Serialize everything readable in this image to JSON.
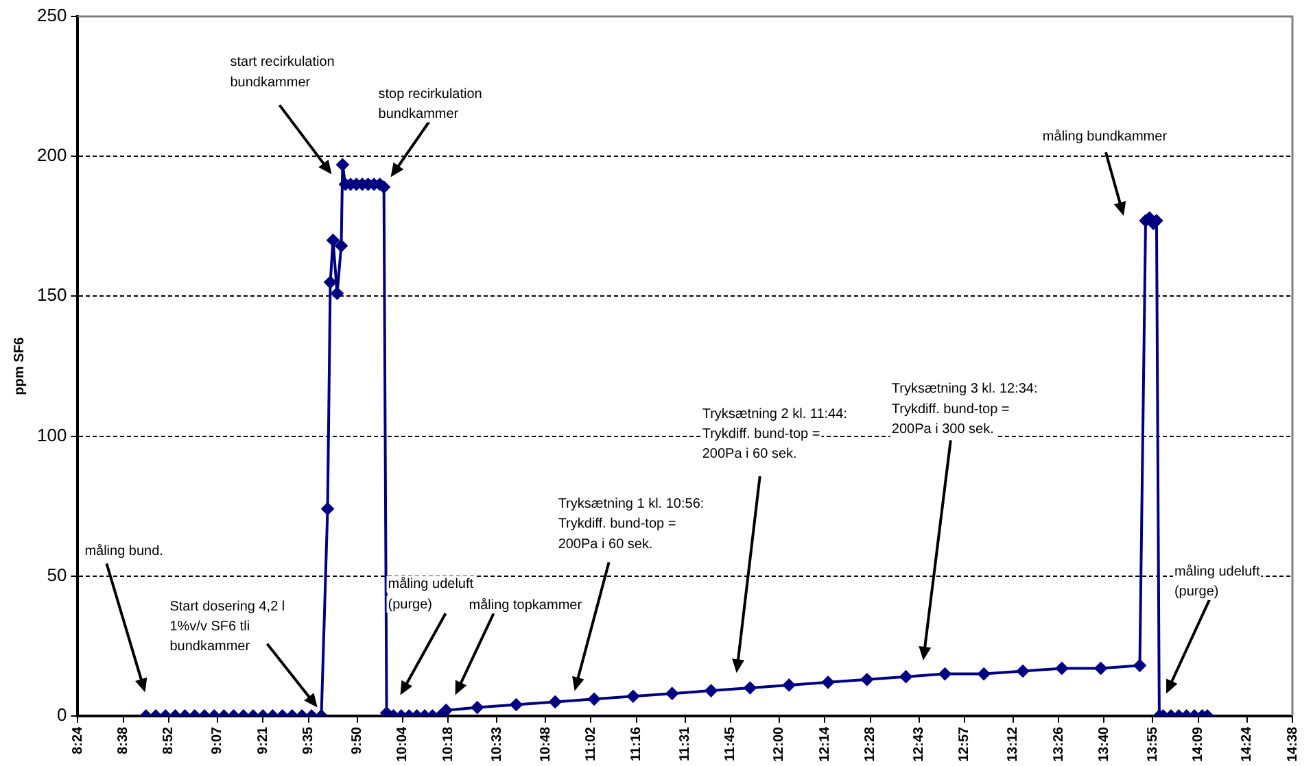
{
  "chart_data": {
    "type": "line",
    "ylabel": "ppm SF6",
    "x": [
      8.75,
      8.8,
      8.85,
      8.9,
      8.95,
      9.0,
      9.05,
      9.1,
      9.15,
      9.2,
      9.25,
      9.3,
      9.35,
      9.4,
      9.45,
      9.5,
      9.55,
      9.6,
      9.65,
      9.682,
      9.696,
      9.71,
      9.731,
      9.752,
      9.759,
      9.773,
      9.8,
      9.83,
      9.86,
      9.89,
      9.92,
      9.95,
      9.971,
      9.985,
      10.02,
      10.06,
      10.1,
      10.14,
      10.18,
      10.22,
      10.26,
      10.29,
      10.45,
      10.65,
      10.85,
      11.05,
      11.25,
      11.45,
      11.65,
      11.85,
      12.05,
      12.25,
      12.45,
      12.65,
      12.85,
      13.05,
      13.25,
      13.45,
      13.65,
      13.85,
      13.88,
      13.9,
      13.92,
      13.936,
      13.95,
      13.97,
      14.01,
      14.05,
      14.09,
      14.13,
      14.17,
      14.197
    ],
    "series": [
      {
        "color": "#000080",
        "values": [
          0,
          0,
          0,
          0,
          0,
          0,
          0,
          0,
          0,
          0,
          0,
          0,
          0,
          0,
          0,
          0,
          0,
          0,
          0,
          74,
          155,
          170,
          151,
          168,
          197,
          190,
          190,
          190,
          190,
          190,
          190,
          190,
          189,
          1,
          0,
          0,
          0,
          0,
          0,
          0,
          0,
          2,
          3,
          4,
          5,
          6,
          7,
          8,
          9,
          10,
          11,
          12,
          13,
          14,
          15,
          15,
          16,
          17,
          17,
          18,
          177,
          178,
          176,
          177,
          0,
          0,
          0,
          0,
          0,
          0,
          0,
          0
        ]
      }
    ],
    "xlim": [
      8.4,
      14.6333
    ],
    "xticks": [
      {
        "value": 8.4,
        "label": "8:24"
      },
      {
        "value": 8.6333,
        "label": "8:38"
      },
      {
        "value": 8.8667,
        "label": "8:52"
      },
      {
        "value": 9.1167,
        "label": "9:07"
      },
      {
        "value": 9.35,
        "label": "9:21"
      },
      {
        "value": 9.5833,
        "label": "9:35"
      },
      {
        "value": 9.8333,
        "label": "9:50"
      },
      {
        "value": 10.0667,
        "label": "10:04"
      },
      {
        "value": 10.3,
        "label": "10:18"
      },
      {
        "value": 10.55,
        "label": "10:33"
      },
      {
        "value": 10.8,
        "label": "10:48"
      },
      {
        "value": 11.0333,
        "label": "11:02"
      },
      {
        "value": 11.2667,
        "label": "11:16"
      },
      {
        "value": 11.5167,
        "label": "11:31"
      },
      {
        "value": 11.75,
        "label": "11:45"
      },
      {
        "value": 12,
        "label": "12:00"
      },
      {
        "value": 12.2333,
        "label": "12:14"
      },
      {
        "value": 12.4667,
        "label": "12:28"
      },
      {
        "value": 12.7167,
        "label": "12:43"
      },
      {
        "value": 12.95,
        "label": "12:57"
      },
      {
        "value": 13.2,
        "label": "13:12"
      },
      {
        "value": 13.4333,
        "label": "13:26"
      },
      {
        "value": 13.6667,
        "label": "13:40"
      },
      {
        "value": 13.9167,
        "label": "13:55"
      },
      {
        "value": 14.15,
        "label": "14:09"
      },
      {
        "value": 14.4,
        "label": "14:24"
      },
      {
        "value": 14.6333,
        "label": "14:38"
      }
    ],
    "ylim": [
      0,
      250
    ],
    "yticks": [
      0,
      50,
      100,
      150,
      200,
      250
    ],
    "grid": "y",
    "legend": false,
    "marker": "diamond",
    "line_style": "solid",
    "annotations": [
      "måling bund.",
      {
        "text": "Start dosering 4,2 l\n1%v/v SF6 tli\nbundkammer",
        "x": 9.63,
        "y": 3
      },
      "start recirkulation\nbundkammer",
      "stop recirkulation\nbundkammer",
      "måling udeluft\n(purge)",
      "måling topkammer",
      "Tryksætning 1 kl. 10:56:\nTrykdiff. bund-top =\n200Pa i 60 sek.",
      "Tryksætning 2 kl. 11:44:\nTrykdiff. bund-top =\n200Pa i 60 sek.",
      "Tryksætning 3 kl. 12:34:\nTrykdiff. bund-top =\n200Pa i 300 sek.",
      "måling bundkammer",
      "måling udeluft\n(purge)"
    ]
  }
}
